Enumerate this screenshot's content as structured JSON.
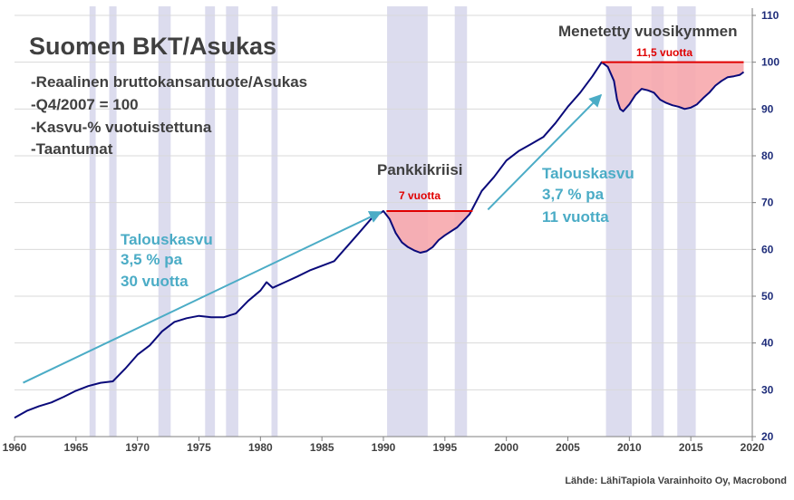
{
  "colors": {
    "line": "#0a0a7a",
    "recession": "#dcdcee",
    "loss_fill": "#f7a9ad",
    "loss_line": "#e00000",
    "growth_arrow": "#4bacc6",
    "grid": "#d9d9d9"
  },
  "title": "Suomen BKT/Asukas",
  "subtitle_lines": [
    "-Reaalinen bruttokansantuote/Asukas",
    "-Q4/2007 = 100",
    "-Kasvu-% vuotuistettuna",
    "-Taantumat"
  ],
  "source": "Lähde: LähiTapiola Varainhoito Oy, Macrobond",
  "annotations": {
    "bank_crisis": "Pankkikriisi",
    "lost_decade": "Menetetty vuosikymmen",
    "gap1_label": "7 vuotta",
    "gap2_label": "11,5 vuotta",
    "growth1_lines": [
      "Talouskasvu",
      "3,5 % pa",
      "30 vuotta"
    ],
    "growth2_lines": [
      "Talouskasvu",
      "3,7 % pa",
      "11 vuotta"
    ]
  },
  "chart_data": {
    "type": "line",
    "title": "Suomen BKT/Asukas",
    "xlim": [
      1960,
      2020
    ],
    "ylim": [
      20,
      110
    ],
    "x_ticks": [
      1960,
      1965,
      1970,
      1975,
      1980,
      1985,
      1990,
      1995,
      2000,
      2005,
      2010,
      2015,
      2020
    ],
    "y_ticks": [
      20,
      30,
      40,
      50,
      60,
      70,
      80,
      90,
      100,
      110
    ],
    "y_axis_side": "right",
    "grid": true,
    "series": [
      {
        "x": [
          1960.0,
          1961.0,
          1962.0,
          1963.0,
          1964.0,
          1965.0,
          1966.0,
          1967.0,
          1968.0,
          1969.0,
          1970.0,
          1971.0,
          1972.0,
          1973.0,
          1974.0,
          1975.0,
          1976.0,
          1977.0,
          1978.0,
          1979.0,
          1980.0,
          1980.5,
          1981.0,
          1982.0,
          1983.0,
          1984.0,
          1985.0,
          1986.0,
          1987.0,
          1988.0,
          1989.0,
          1990.0,
          1990.5,
          1991.0,
          1991.5,
          1992.0,
          1992.5,
          1993.0,
          1993.5,
          1994.0,
          1994.5,
          1995.0,
          1996.0,
          1997.0,
          1998.0,
          1999.0,
          2000.0,
          2001.0,
          2002.0,
          2003.0,
          2004.0,
          2005.0,
          2006.0,
          2007.0,
          2007.75,
          2008.25,
          2008.75,
          2009.0,
          2009.25,
          2009.5,
          2010.0,
          2010.5,
          2011.0,
          2011.5,
          2012.0,
          2012.5,
          2013.0,
          2013.5,
          2014.0,
          2014.5,
          2015.0,
          2015.5,
          2016.0,
          2016.5,
          2017.0,
          2017.5,
          2018.0,
          2018.5,
          2019.0,
          2019.3
        ],
        "values": [
          24.0,
          25.5,
          26.5,
          27.3,
          28.5,
          29.8,
          30.8,
          31.5,
          31.8,
          34.5,
          37.5,
          39.5,
          42.5,
          44.5,
          45.3,
          45.8,
          45.5,
          45.5,
          46.3,
          49.0,
          51.2,
          53.0,
          51.8,
          53.0,
          54.2,
          55.5,
          56.5,
          57.5,
          60.5,
          63.5,
          66.5,
          68.2,
          66.5,
          63.5,
          61.5,
          60.5,
          59.8,
          59.3,
          59.6,
          60.5,
          62.0,
          63.0,
          64.7,
          67.5,
          72.5,
          75.5,
          79.0,
          81.0,
          82.5,
          84.0,
          87.0,
          90.5,
          93.5,
          97.0,
          100.0,
          99.0,
          96.0,
          92.0,
          90.0,
          89.5,
          91.0,
          93.0,
          94.3,
          94.0,
          93.5,
          92.0,
          91.3,
          90.8,
          90.5,
          90.0,
          90.3,
          91.0,
          92.3,
          93.5,
          95.0,
          96.0,
          96.8,
          97.0,
          97.3,
          97.9
        ]
      }
    ],
    "recessions": [
      [
        1966.1,
        1966.6
      ],
      [
        1967.7,
        1968.3
      ],
      [
        1971.7,
        1972.7
      ],
      [
        1975.5,
        1976.3
      ],
      [
        1977.2,
        1978.2
      ],
      [
        1980.9,
        1981.4
      ],
      [
        1990.3,
        1993.6
      ],
      [
        1995.8,
        1996.8
      ],
      [
        2008.1,
        2010.2
      ],
      [
        2011.8,
        2012.8
      ],
      [
        2013.9,
        2015.4
      ]
    ],
    "loss_periods": [
      {
        "start": 1990.25,
        "end": 1997.25,
        "level": 68.2,
        "label": "7 vuotta"
      },
      {
        "start": 2007.75,
        "end": 2019.3,
        "level": 100.0,
        "label": "11,5 vuotta"
      }
    ],
    "growth_trends": [
      {
        "from": [
          1960.7,
          31.5
        ],
        "to": [
          1989.8,
          68.0
        ],
        "label": "Talouskasvu 3,5 % pa 30 vuotta"
      },
      {
        "from": [
          1998.5,
          68.5
        ],
        "to": [
          2007.7,
          93.0
        ],
        "label": "Talouskasvu 3,7 % pa 11 vuotta"
      }
    ]
  }
}
